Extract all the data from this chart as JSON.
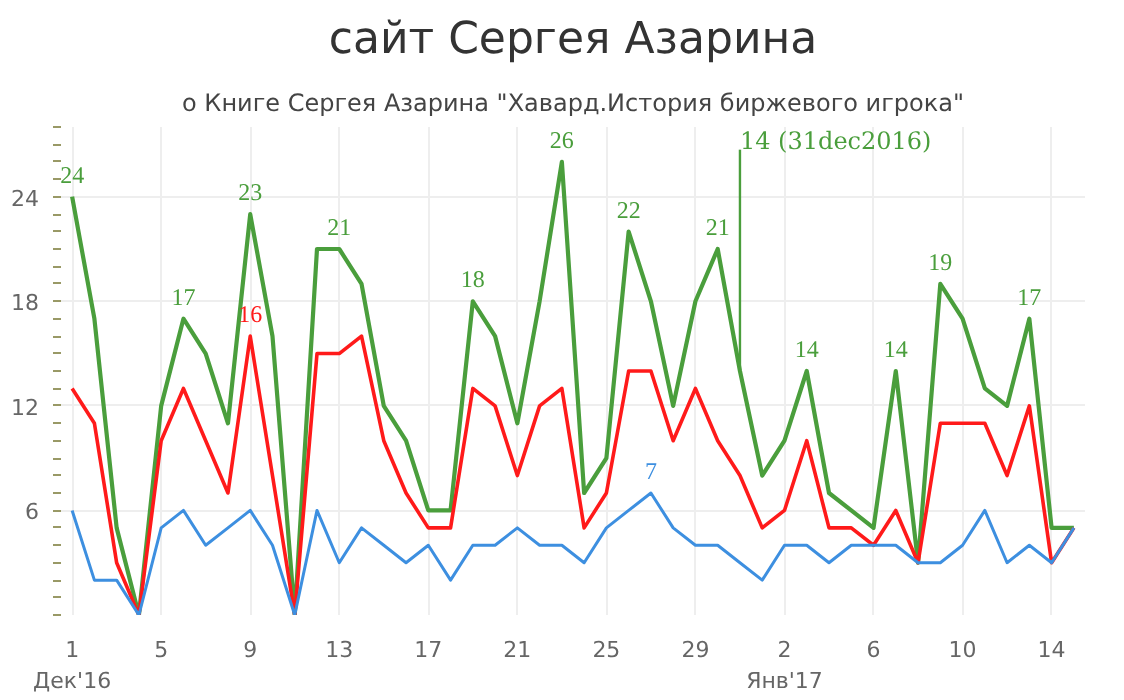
{
  "chart_data": {
    "type": "line",
    "title": "сайт Сергея Азарина",
    "subtitle": "о Книге Сергея Азарина \"Хавард.История биржевого игрока\"",
    "x": [
      "2016-12-01",
      "2016-12-02",
      "2016-12-03",
      "2016-12-04",
      "2016-12-05",
      "2016-12-06",
      "2016-12-07",
      "2016-12-08",
      "2016-12-09",
      "2016-12-10",
      "2016-12-11",
      "2016-12-12",
      "2016-12-13",
      "2016-12-14",
      "2016-12-15",
      "2016-12-16",
      "2016-12-17",
      "2016-12-18",
      "2016-12-19",
      "2016-12-20",
      "2016-12-21",
      "2016-12-22",
      "2016-12-23",
      "2016-12-24",
      "2016-12-25",
      "2016-12-26",
      "2016-12-27",
      "2016-12-28",
      "2016-12-29",
      "2016-12-30",
      "2016-12-31",
      "2017-01-01",
      "2017-01-02",
      "2017-01-03",
      "2017-01-04",
      "2017-01-05",
      "2017-01-06",
      "2017-01-07",
      "2017-01-08",
      "2017-01-09",
      "2017-01-10",
      "2017-01-11",
      "2017-01-12",
      "2017-01-13",
      "2017-01-14",
      "2017-01-15"
    ],
    "series": [
      {
        "color": "#4a9e3c",
        "values": [
          24,
          17,
          5,
          0,
          12,
          17,
          15,
          11,
          23,
          16,
          0,
          21,
          21,
          19,
          12,
          10,
          6,
          6,
          18,
          16,
          11,
          18,
          26,
          7,
          9,
          22,
          18,
          12,
          18,
          21,
          14,
          8,
          10,
          14,
          7,
          6,
          5,
          14,
          3,
          19,
          17,
          13,
          12,
          17,
          5,
          5
        ],
        "value_labels": [
          "24",
          null,
          null,
          null,
          null,
          "17",
          null,
          null,
          "23",
          null,
          null,
          null,
          "21",
          null,
          null,
          null,
          null,
          null,
          "18",
          null,
          null,
          null,
          "26",
          null,
          null,
          "22",
          null,
          null,
          null,
          "21",
          null,
          null,
          null,
          "14",
          null,
          null,
          null,
          "14",
          null,
          "19",
          null,
          null,
          null,
          "17",
          null,
          null
        ]
      },
      {
        "color": "#ff1a1a",
        "values": [
          13,
          11,
          3,
          0,
          10,
          13,
          10,
          7,
          16,
          8,
          0,
          15,
          15,
          16,
          10,
          7,
          5,
          5,
          13,
          12,
          8,
          12,
          13,
          5,
          7,
          14,
          14,
          10,
          13,
          10,
          8,
          5,
          6,
          10,
          5,
          5,
          4,
          6,
          3,
          11,
          11,
          11,
          8,
          12,
          3,
          5
        ],
        "value_labels": [
          null,
          null,
          null,
          null,
          null,
          null,
          null,
          null,
          "16",
          null,
          null,
          null,
          null,
          null,
          null,
          null,
          null,
          null,
          null,
          null,
          null,
          null,
          null,
          null,
          null,
          null,
          null,
          null,
          null,
          null,
          null,
          null,
          null,
          null,
          null,
          null,
          null,
          null,
          null,
          null,
          null,
          null,
          null,
          null,
          null,
          null
        ]
      },
      {
        "color": "#3d8fe0",
        "values": [
          6,
          2,
          2,
          0,
          5,
          6,
          4,
          5,
          6,
          4,
          0,
          6,
          3,
          5,
          4,
          3,
          4,
          2,
          4,
          4,
          5,
          4,
          4,
          3,
          5,
          6,
          7,
          5,
          4,
          4,
          3,
          2,
          4,
          4,
          3,
          4,
          4,
          4,
          3,
          3,
          4,
          6,
          3,
          4,
          3,
          5
        ],
        "value_labels": [
          null,
          null,
          null,
          null,
          null,
          null,
          null,
          null,
          null,
          null,
          null,
          null,
          null,
          null,
          null,
          null,
          null,
          null,
          null,
          null,
          null,
          null,
          null,
          null,
          null,
          null,
          "7",
          null,
          null,
          null,
          null,
          null,
          null,
          null,
          null,
          null,
          null,
          null,
          null,
          null,
          null,
          null,
          null,
          null,
          null,
          null
        ]
      }
    ],
    "annotations": [
      {
        "text": "14 (31dec2016)",
        "x": "2016-12-31",
        "y": 14
      }
    ],
    "xlim": [
      "2016-11-30T12:00",
      "2017-01-15T12:00"
    ],
    "xticks": [
      {
        "value": "2016-12-01",
        "label": "1\nДек'16"
      },
      {
        "value": "2016-12-05",
        "label": "5"
      },
      {
        "value": "2016-12-09",
        "label": "9"
      },
      {
        "value": "2016-12-13",
        "label": "13"
      },
      {
        "value": "2016-12-17",
        "label": "17"
      },
      {
        "value": "2016-12-21",
        "label": "21"
      },
      {
        "value": "2016-12-25",
        "label": "25"
      },
      {
        "value": "2016-12-29",
        "label": "29"
      },
      {
        "value": "2017-01-02",
        "label": "2\nЯнв'17"
      },
      {
        "value": "2017-01-06",
        "label": "6"
      },
      {
        "value": "2017-01-10",
        "label": "10"
      },
      {
        "value": "2017-01-14",
        "label": "14"
      }
    ],
    "ylim": [
      0,
      28
    ],
    "yticks": [
      6,
      12,
      18,
      24
    ],
    "grid": true,
    "marker": "none",
    "line_style": "solid"
  }
}
